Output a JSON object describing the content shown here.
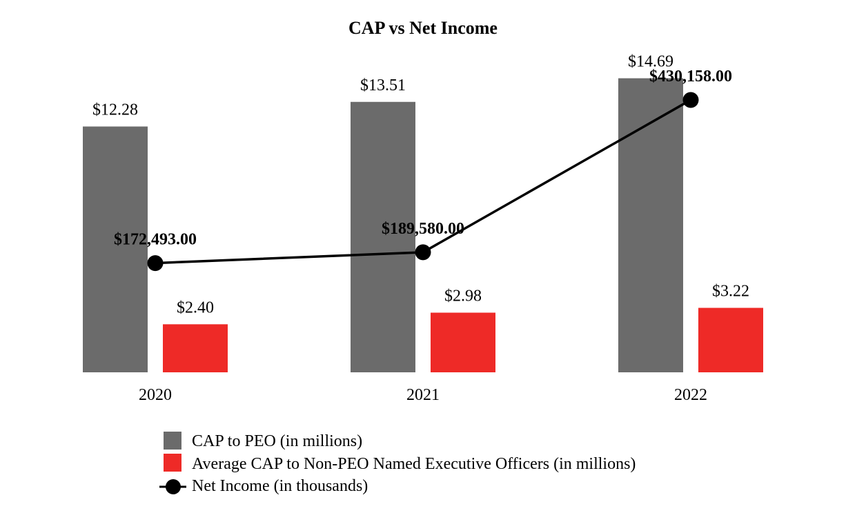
{
  "chart_data": {
    "type": "bar",
    "title": "CAP vs Net Income",
    "categories": [
      "2020",
      "2021",
      "2022"
    ],
    "series": [
      {
        "name": "CAP to PEO (in millions)",
        "kind": "bar",
        "color": "#6b6b6b",
        "values": [
          12.28,
          13.51,
          14.69
        ],
        "labels": [
          "$12.28",
          "$13.51",
          "$14.69"
        ]
      },
      {
        "name": "Average CAP to Non-PEO Named Executive Officers (in millions)",
        "kind": "bar",
        "color": "#ee2a27",
        "values": [
          2.4,
          2.98,
          3.22
        ],
        "labels": [
          "$2.40",
          "$2.98",
          "$3.22"
        ]
      },
      {
        "name": "Net Income (in thousands)",
        "kind": "line",
        "color": "#000000",
        "values": [
          172493.0,
          189580.0,
          430158.0
        ],
        "labels": [
          "$172,493.00",
          "$189,580.00",
          "$430,158.00"
        ]
      }
    ],
    "bar_ylim": [
      0,
      15.5
    ],
    "line_ylim": [
      0,
      490000
    ],
    "legend_position": "bottom",
    "grid": false
  }
}
